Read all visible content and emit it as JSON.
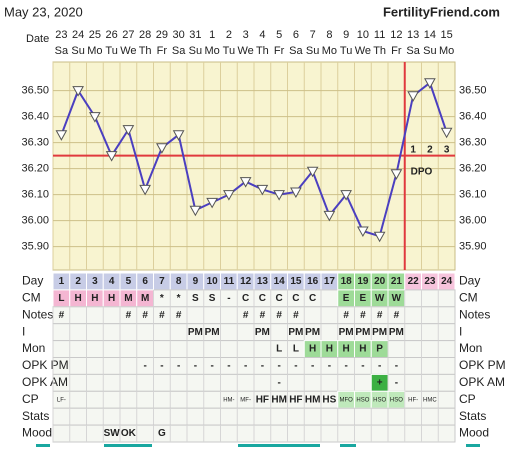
{
  "header": {
    "date": "May 23, 2020",
    "site": "FertilityFriend.com"
  },
  "chart_data": {
    "type": "line",
    "x_label": "Date",
    "categories": [
      "23",
      "24",
      "25",
      "26",
      "27",
      "28",
      "29",
      "30",
      "31",
      "1",
      "2",
      "3",
      "4",
      "5",
      "6",
      "7",
      "8",
      "9",
      "10",
      "11",
      "12",
      "13",
      "14",
      "15"
    ],
    "weekdays": [
      "Sa",
      "Su",
      "Mo",
      "Tu",
      "We",
      "Th",
      "Fr",
      "Sa",
      "Su",
      "Mo",
      "Tu",
      "We",
      "Th",
      "Fr",
      "Sa",
      "Su",
      "Mo",
      "Tu",
      "We",
      "Th",
      "Fr",
      "Sa",
      "Su",
      "Mo"
    ],
    "series": [
      {
        "color": "#4b3fc0",
        "values": [
          36.33,
          36.5,
          36.4,
          36.25,
          36.35,
          36.12,
          36.28,
          36.33,
          36.04,
          36.07,
          36.1,
          36.15,
          36.12,
          36.1,
          36.11,
          36.19,
          36.02,
          36.1,
          35.96,
          35.94,
          36.18,
          36.48,
          36.53,
          36.34
        ]
      }
    ],
    "ylim": [
      35.81,
      36.61
    ],
    "yticks": [
      {
        "value": 35.9,
        "label": "35.90"
      },
      {
        "value": 36.0,
        "label": "36.00"
      },
      {
        "value": 36.1,
        "label": "36.10"
      },
      {
        "value": 36.2,
        "label": "36.20"
      },
      {
        "value": 36.3,
        "label": "36.30"
      },
      {
        "value": 36.4,
        "label": "36.40"
      },
      {
        "value": 36.5,
        "label": "36.50"
      }
    ],
    "grid": true,
    "coverline": 36.25,
    "ovulation_day": "12",
    "line_color": "#e0393e",
    "dpo_label": "DPO",
    "dpo": [
      1,
      2,
      3
    ]
  },
  "table": {
    "column_colors": [
      "#c7cce6",
      "#c7cce6",
      "#c7cce6",
      "#c7cce6",
      "#c7cce6",
      "#c7cce6",
      "#c7cce6",
      "#c7cce6",
      "#c7cce6",
      "#c7cce6",
      "#c7cce6",
      "#c7cce6",
      "#c7cce6",
      "#c7cce6",
      "#c7cce6",
      "#c7cce6",
      "#c7cce6",
      "#9edb98",
      "#9edb98",
      "#9edb98",
      "#9edb98",
      "#f6c4dc",
      "#f6c4dc",
      "#f6c4dc"
    ],
    "rows": [
      {
        "label": "Day",
        "cells": [
          1,
          2,
          3,
          4,
          5,
          6,
          7,
          8,
          9,
          10,
          11,
          12,
          13,
          14,
          15,
          16,
          17,
          18,
          19,
          20,
          21,
          22,
          23,
          24
        ]
      },
      {
        "label": "CM",
        "cells": [
          "L",
          "H",
          "H",
          "H",
          "M",
          "M",
          "*",
          "*",
          "S",
          "S",
          "-",
          "C",
          "C",
          "C",
          "C",
          "C",
          null,
          "E",
          "E",
          "W",
          "W",
          null,
          null,
          null
        ],
        "cell_colors": {
          "L": "#f4b6d2",
          "H": "#f4b6d2",
          "M": "#f4b6d2",
          "E": "#9edb98",
          "W": "#9edb98"
        }
      },
      {
        "label": "Notes",
        "cells": [
          "#",
          null,
          null,
          null,
          "#",
          "#",
          "#",
          "#",
          null,
          null,
          null,
          "#",
          "#",
          "#",
          "#",
          null,
          null,
          "#",
          "#",
          "#",
          "#",
          null,
          null,
          null
        ]
      },
      {
        "label": "I",
        "cells": [
          null,
          null,
          null,
          null,
          null,
          null,
          null,
          null,
          "PM",
          "PM",
          null,
          null,
          "PM",
          null,
          "PM",
          "PM",
          null,
          "PM",
          "PM",
          "PM",
          "PM",
          null,
          null,
          null
        ]
      },
      {
        "label": "Mon",
        "cells": [
          null,
          null,
          null,
          null,
          null,
          null,
          null,
          null,
          null,
          null,
          null,
          null,
          null,
          "L",
          "L",
          "H",
          "H",
          "H",
          "H",
          "P",
          null,
          null,
          null,
          null
        ],
        "cell_colors": {
          "H": "#9edb98",
          "P": "#9edb98"
        }
      },
      {
        "label": "OPK PM",
        "cells": [
          null,
          null,
          null,
          null,
          null,
          "-",
          "-",
          "-",
          "-",
          "-",
          "-",
          "-",
          "-",
          "-",
          "-",
          "-",
          "-",
          "-",
          "-",
          "-",
          "-",
          null,
          null,
          null
        ]
      },
      {
        "label": "OPK AM",
        "cells": [
          null,
          null,
          null,
          null,
          null,
          null,
          null,
          null,
          null,
          null,
          null,
          null,
          null,
          "-",
          null,
          null,
          null,
          null,
          null,
          "+",
          "-",
          null,
          null,
          null
        ],
        "cell_colors": {
          "+": "#3cb043"
        }
      },
      {
        "label": "CP",
        "cells": [
          "LF-",
          null,
          null,
          null,
          null,
          null,
          null,
          null,
          null,
          null,
          "HM-",
          "MF-",
          "HF",
          "HM",
          "HF",
          "HM",
          "HS",
          "MFO",
          "HSO",
          "HSO",
          "HSO",
          "HF-",
          "HMC",
          null
        ],
        "cell_colors": {
          "MFO": "#bfe9bb",
          "HSO": "#bfe9bb"
        }
      },
      {
        "label": "Stats",
        "cells": [
          null,
          null,
          null,
          null,
          null,
          null,
          null,
          null,
          null,
          null,
          null,
          null,
          null,
          null,
          null,
          null,
          null,
          null,
          null,
          null,
          null,
          null,
          null,
          null
        ]
      },
      {
        "label": "Mood",
        "cells": [
          null,
          null,
          null,
          "SW",
          "OK",
          null,
          "G",
          null,
          null,
          null,
          null,
          null,
          null,
          null,
          null,
          null,
          null,
          null,
          null,
          null,
          null,
          null,
          null,
          null
        ]
      }
    ]
  }
}
